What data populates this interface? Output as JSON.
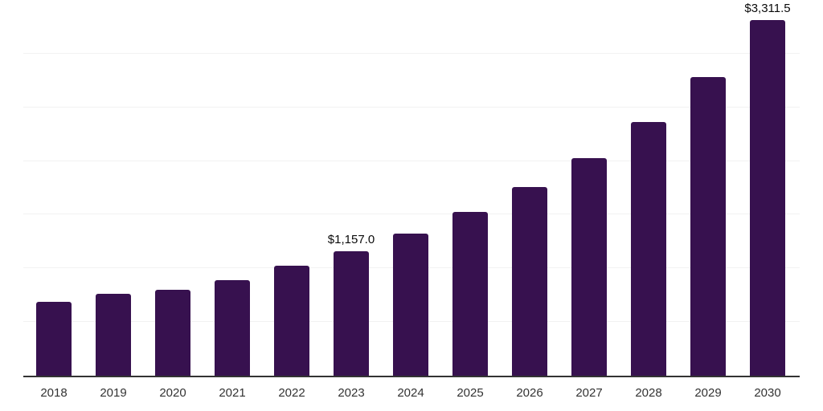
{
  "chart_data": {
    "type": "bar",
    "title": "",
    "xlabel": "",
    "ylabel": "",
    "categories": [
      "2018",
      "2019",
      "2020",
      "2021",
      "2022",
      "2023",
      "2024",
      "2025",
      "2026",
      "2027",
      "2028",
      "2029",
      "2030"
    ],
    "values": [
      690,
      760,
      800,
      890,
      1025,
      1157.0,
      1325,
      1525,
      1757,
      2026,
      2362,
      2781,
      3311.5
    ],
    "data_labels": {
      "2023": "$1,157.0",
      "2030": "$3,311.5"
    },
    "ylim": [
      0,
      3500
    ],
    "gridline_step": 500,
    "grid": "horizontal",
    "legend_position": "none",
    "colors": {
      "bar": "#37114F",
      "gridline": "#f2f2f2",
      "axis_line": "#333333",
      "tick_label": "#333333",
      "data_label": "#0a0a0a",
      "background": "#ffffff"
    }
  }
}
